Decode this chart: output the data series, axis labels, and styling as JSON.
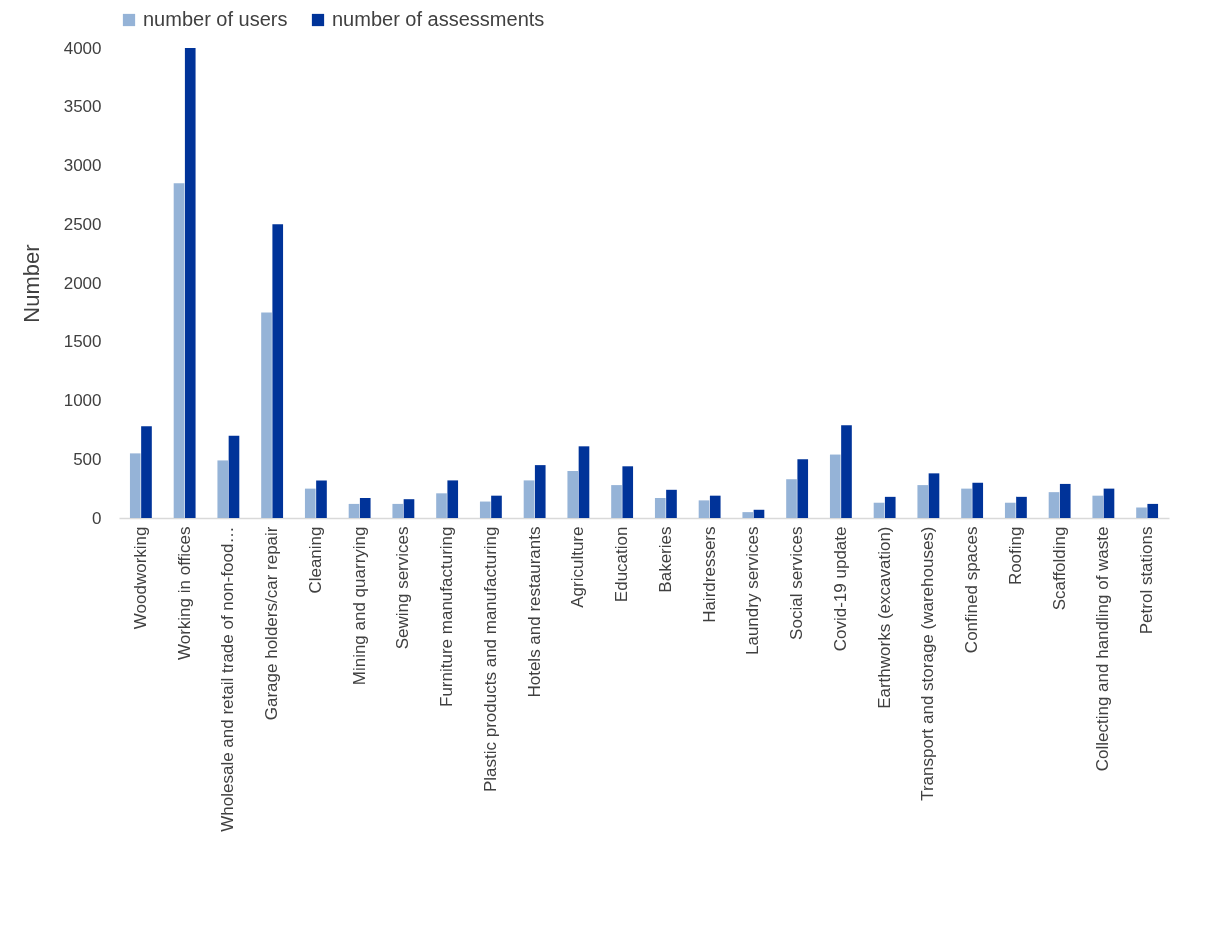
{
  "chart_data": {
    "type": "bar",
    "ylabel": "Number",
    "categories": [
      "Woodworking",
      "Working in offices",
      "Wholesale and retail trade of non-food…",
      "Garage holders/car repair",
      "Cleaning",
      "Mining and quarrying",
      "Sewing services",
      "Furniture manufacturing",
      "Plastic products and manufacturing",
      "Hotels and restaurants",
      "Agriculture",
      "Education",
      "Bakeries",
      "Hairdressers",
      "Laundry services",
      "Social services",
      "Covid-19 update",
      "Earthworks (excavation)",
      "Transport and storage (warehouses)",
      "Confined spaces",
      "Roofing",
      "Scaffolding",
      "Collecting and handling of waste",
      "Petrol stations"
    ],
    "series": [
      {
        "name": "number of users",
        "color": "#95b3d7",
        "values": [
          550,
          2850,
          490,
          1750,
          250,
          120,
          120,
          210,
          140,
          320,
          400,
          280,
          170,
          150,
          50,
          330,
          540,
          130,
          280,
          250,
          130,
          220,
          190,
          90
        ]
      },
      {
        "name": "number of assessments",
        "color": "#003399",
        "values": [
          780,
          4000,
          700,
          2500,
          320,
          170,
          160,
          320,
          190,
          450,
          610,
          440,
          240,
          190,
          70,
          500,
          790,
          180,
          380,
          300,
          180,
          290,
          250,
          120
        ]
      }
    ],
    "ylim": [
      0,
      4000
    ],
    "yticks": [
      0,
      500,
      1000,
      1500,
      2000,
      2500,
      3000,
      3500,
      4000
    ],
    "legend": "top"
  }
}
